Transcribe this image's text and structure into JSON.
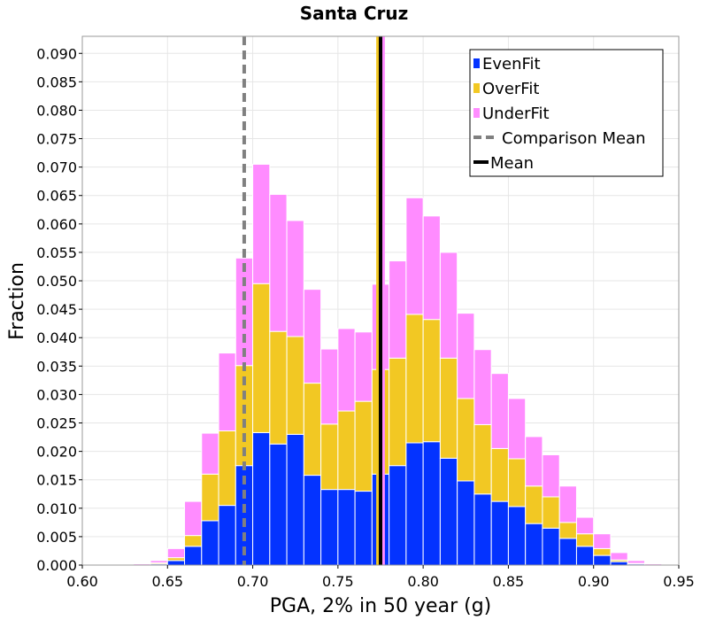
{
  "chart_data": {
    "type": "bar",
    "stacked": true,
    "title": "Santa Cruz",
    "xlabel": "PGA, 2% in 50 year (g)",
    "ylabel": "Fraction",
    "xlim": [
      0.6,
      0.95
    ],
    "ylim": [
      0,
      0.093
    ],
    "x_ticks": [
      "0.60",
      "0.65",
      "0.70",
      "0.75",
      "0.80",
      "0.85",
      "0.90",
      "0.95"
    ],
    "y_ticks": [
      "0.000",
      "0.005",
      "0.010",
      "0.015",
      "0.020",
      "0.025",
      "0.030",
      "0.035",
      "0.040",
      "0.045",
      "0.050",
      "0.055",
      "0.060",
      "0.065",
      "0.070",
      "0.075",
      "0.080",
      "0.085",
      "0.090"
    ],
    "grid": true,
    "legend_position": "top-right",
    "bin_width": 0.01,
    "bin_centers": [
      0.635,
      0.645,
      0.655,
      0.665,
      0.675,
      0.685,
      0.695,
      0.705,
      0.715,
      0.725,
      0.735,
      0.745,
      0.755,
      0.765,
      0.775,
      0.785,
      0.795,
      0.805,
      0.815,
      0.825,
      0.835,
      0.845,
      0.855,
      0.865,
      0.875,
      0.885,
      0.895,
      0.905,
      0.915,
      0.925,
      0.935
    ],
    "series": [
      {
        "name": "EvenFit",
        "color": "#0433ff",
        "values": [
          0.0,
          0.0002,
          0.0008,
          0.0033,
          0.0078,
          0.0105,
          0.0175,
          0.0233,
          0.0213,
          0.023,
          0.0158,
          0.0133,
          0.0133,
          0.013,
          0.016,
          0.0175,
          0.0215,
          0.0217,
          0.0188,
          0.0148,
          0.0125,
          0.0112,
          0.0103,
          0.0073,
          0.0065,
          0.0047,
          0.0033,
          0.0017,
          0.0006,
          0.0002,
          0.0
        ]
      },
      {
        "name": "OverFit",
        "color": "#f2c823",
        "values": [
          0.0,
          0.0002,
          0.0005,
          0.0019,
          0.0082,
          0.0131,
          0.0176,
          0.0262,
          0.0198,
          0.0172,
          0.0162,
          0.0115,
          0.0138,
          0.0158,
          0.0184,
          0.0189,
          0.0226,
          0.0215,
          0.0176,
          0.0145,
          0.0122,
          0.0093,
          0.0084,
          0.0066,
          0.0055,
          0.0028,
          0.0022,
          0.0012,
          0.0003,
          0.0001,
          0.0
        ]
      },
      {
        "name": "UnderFit",
        "color": "#ff8cff",
        "values": [
          0.0002,
          0.0004,
          0.0016,
          0.006,
          0.0072,
          0.0137,
          0.0189,
          0.021,
          0.0241,
          0.0204,
          0.0165,
          0.0132,
          0.0145,
          0.0122,
          0.015,
          0.0171,
          0.0205,
          0.0182,
          0.0186,
          0.015,
          0.0132,
          0.0132,
          0.0106,
          0.0087,
          0.0074,
          0.0064,
          0.0029,
          0.0026,
          0.0013,
          0.0005,
          0.0002
        ]
      }
    ],
    "lines": [
      {
        "name": "Comparison Mean",
        "x": 0.695,
        "color": "#808080",
        "style": "dashed"
      },
      {
        "name": "Mean",
        "x": 0.775,
        "color": "#000000",
        "style": "solid"
      }
    ],
    "extra_vertical_lines": [
      {
        "x": 0.7735,
        "color": "#f2c823"
      },
      {
        "x": 0.7765,
        "color": "#ff8cff"
      }
    ]
  }
}
